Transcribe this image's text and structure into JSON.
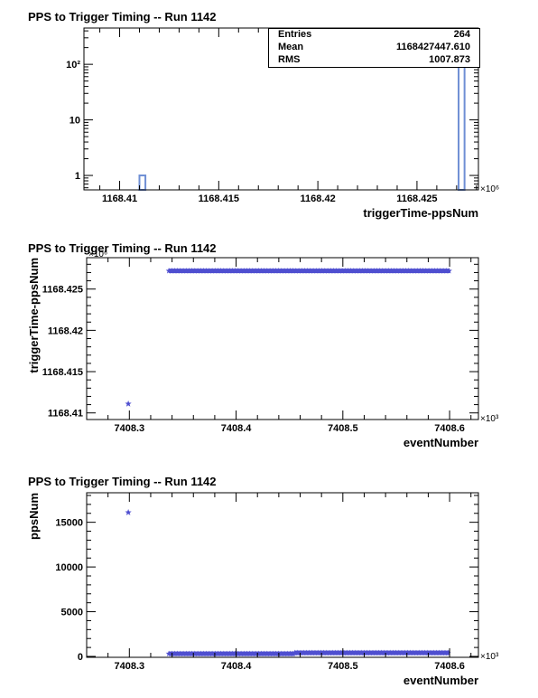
{
  "charts": [
    {
      "type": "bar",
      "title": "PPS to Trigger Timing -- Run 1142",
      "xlabel": "triggerTime-ppsNum",
      "ylabel": "",
      "x_multiplier": "×10⁶",
      "xlim": [
        1168.4082,
        1168.4281
      ],
      "ylim": [
        0.55,
        450
      ],
      "y_scale": "log",
      "xticks": [
        {
          "value": 1168.41,
          "label": "1168.41"
        },
        {
          "value": 1168.415,
          "label": "1168.415"
        },
        {
          "value": 1168.42,
          "label": "1168.42"
        },
        {
          "value": 1168.425,
          "label": "1168.425"
        }
      ],
      "yticks": [
        {
          "value": 1,
          "label": "1"
        },
        {
          "value": 10,
          "label": "10"
        },
        {
          "value": 100,
          "label": "10²"
        }
      ],
      "bins": [
        {
          "x0": 1168.411,
          "x1": 1168.4113,
          "count": 1
        },
        {
          "x0": 1168.4271,
          "x1": 1168.4274,
          "count": 263
        }
      ],
      "stats": {
        "rows": [
          {
            "label": "Entries",
            "value": "264"
          },
          {
            "label": "Mean",
            "value": "1168427447.610"
          },
          {
            "label": "RMS",
            "value": "1007.873"
          }
        ]
      },
      "colors": {
        "bar": "#6f8fd4"
      }
    },
    {
      "type": "scatter",
      "title": "PPS to Trigger Timing -- Run 1142",
      "xlabel": "eventNumber",
      "ylabel": "triggerTime-ppsNum",
      "x_multiplier": "×10³",
      "y_multiplier": "×10⁶",
      "xlim": [
        7408.26,
        7408.627
      ],
      "ylim": [
        1168.4092,
        1168.4288
      ],
      "xticks": [
        {
          "value": 7408.3,
          "label": "7408.3"
        },
        {
          "value": 7408.4,
          "label": "7408.4"
        },
        {
          "value": 7408.5,
          "label": "7408.5"
        },
        {
          "value": 7408.6,
          "label": "7408.6"
        }
      ],
      "yticks": [
        {
          "value": 1168.41,
          "label": "1168.41"
        },
        {
          "value": 1168.415,
          "label": "1168.415"
        },
        {
          "value": 1168.42,
          "label": "1168.42"
        },
        {
          "value": 1168.425,
          "label": "1168.425"
        }
      ],
      "points": [
        {
          "x": 7408.299,
          "y": 1168.4111
        }
      ],
      "bands": [
        {
          "x_start": 7408.337,
          "x_end": 7408.6,
          "y": 1168.4272
        }
      ],
      "colors": {
        "marker": "#4f4fd0"
      }
    },
    {
      "type": "scatter",
      "title": "PPS to Trigger Timing -- Run 1142",
      "xlabel": "eventNumber",
      "ylabel": "ppsNum",
      "x_multiplier": "×10³",
      "xlim": [
        7408.26,
        7408.627
      ],
      "ylim": [
        -100,
        18300
      ],
      "xticks": [
        {
          "value": 7408.3,
          "label": "7408.3"
        },
        {
          "value": 7408.4,
          "label": "7408.4"
        },
        {
          "value": 7408.5,
          "label": "7408.5"
        },
        {
          "value": 7408.6,
          "label": "7408.6"
        }
      ],
      "yticks": [
        {
          "value": 0,
          "label": "0"
        },
        {
          "value": 5000,
          "label": "5000"
        },
        {
          "value": 10000,
          "label": "10000"
        },
        {
          "value": 15000,
          "label": "15000"
        }
      ],
      "points": [
        {
          "x": 7408.299,
          "y": 16100
        }
      ],
      "bands": [
        {
          "x_start": 7408.337,
          "x_end": 7408.455,
          "y": 300
        },
        {
          "x_start": 7408.455,
          "x_end": 7408.6,
          "y": 400
        }
      ],
      "colors": {
        "marker": "#4f4fd0"
      }
    }
  ]
}
